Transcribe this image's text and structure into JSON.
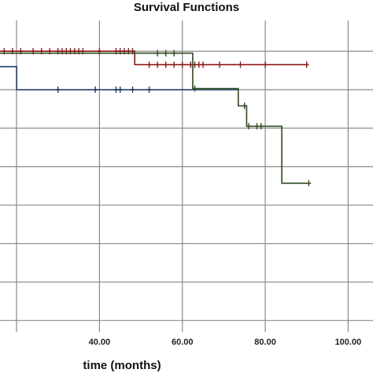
{
  "chart_data": {
    "type": "line",
    "subtype": "kaplan-meier-step",
    "title": "Survival Functions",
    "xlabel": "time (months)",
    "ylabel": "",
    "xlim": [
      16.0,
      106.0
    ],
    "ylim": [
      0.27,
      1.08
    ],
    "x_ticks": [
      20,
      40,
      60,
      80,
      100
    ],
    "x_tick_labels": [
      "",
      "40.00",
      "60.00",
      "80.00",
      "100.00"
    ],
    "y_gridlines": [
      0.3,
      0.4,
      0.5,
      0.6,
      0.7,
      0.8,
      0.9,
      1.0
    ],
    "grid": true,
    "legend": "none",
    "series": [
      {
        "color": "#8b1a1a",
        "steps": [
          [
            16.0,
            1.0
          ],
          [
            48.5,
            1.0
          ],
          [
            48.5,
            0.965
          ],
          [
            90.0,
            0.965
          ]
        ],
        "censored": [
          17,
          19,
          21,
          24,
          26,
          28,
          30,
          31,
          32,
          33,
          34,
          35,
          36,
          40,
          44,
          45,
          46,
          47,
          48,
          52,
          54,
          56,
          58,
          60,
          62,
          63,
          64,
          65,
          69,
          74,
          80,
          90
        ]
      },
      {
        "color": "#1f3b6b",
        "steps": [
          [
            16.0,
            0.96
          ],
          [
            20.0,
            0.96
          ],
          [
            20.0,
            0.9
          ],
          [
            62.5,
            0.9
          ],
          [
            62.5,
            0.9
          ],
          [
            73.5,
            0.9
          ]
        ],
        "censored": [
          30,
          39,
          44,
          45,
          48,
          52
        ]
      },
      {
        "color": "#2e4a1e",
        "steps": [
          [
            16.0,
            0.995
          ],
          [
            62.5,
            0.995
          ],
          [
            62.5,
            0.903
          ],
          [
            73.5,
            0.903
          ],
          [
            73.5,
            0.858
          ],
          [
            75.5,
            0.858
          ],
          [
            75.5,
            0.805
          ],
          [
            84.0,
            0.805
          ],
          [
            84.0,
            0.657
          ],
          [
            90.5,
            0.657
          ]
        ],
        "censored": [
          54,
          56,
          58,
          63,
          75,
          76,
          78,
          79,
          90.5
        ]
      }
    ]
  }
}
